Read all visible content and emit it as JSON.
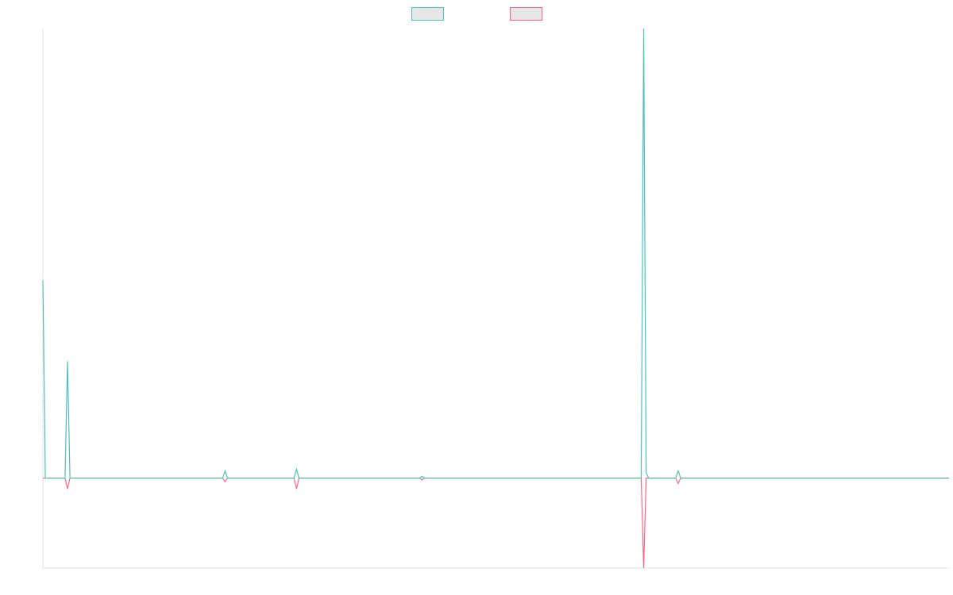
{
  "chart_data": {
    "type": "line",
    "title": "",
    "xlabel": "",
    "ylabel": "",
    "legend": {
      "placement": "top-center",
      "entries": [
        {
          "series_index": 0,
          "swatch_fill": "#e6e6e6"
        },
        {
          "series_index": 1,
          "swatch_fill": "#e6e6e6"
        }
      ]
    },
    "grid": false,
    "xlim": [
      0,
      368
    ],
    "ylim": [
      -5,
      25
    ],
    "x": [
      0,
      1,
      9,
      10,
      11,
      73,
      74,
      75,
      102,
      103,
      104,
      153,
      154,
      155,
      243,
      244,
      245,
      246,
      257,
      258,
      259,
      368
    ],
    "series": [
      {
        "color": "#4bc0c0",
        "values": [
          11,
          0,
          0,
          6.5,
          0,
          0,
          0.4,
          0,
          0,
          0.5,
          0,
          0,
          0.1,
          0,
          0,
          25,
          0.3,
          0,
          0,
          0.4,
          0,
          0
        ]
      },
      {
        "color": "#ff6384",
        "values": [
          0,
          0,
          0,
          -0.6,
          0,
          0,
          -0.2,
          0,
          0,
          -0.6,
          0,
          0,
          -0.1,
          0,
          0,
          -5,
          0,
          0,
          0,
          -0.3,
          0,
          0
        ]
      }
    ]
  }
}
